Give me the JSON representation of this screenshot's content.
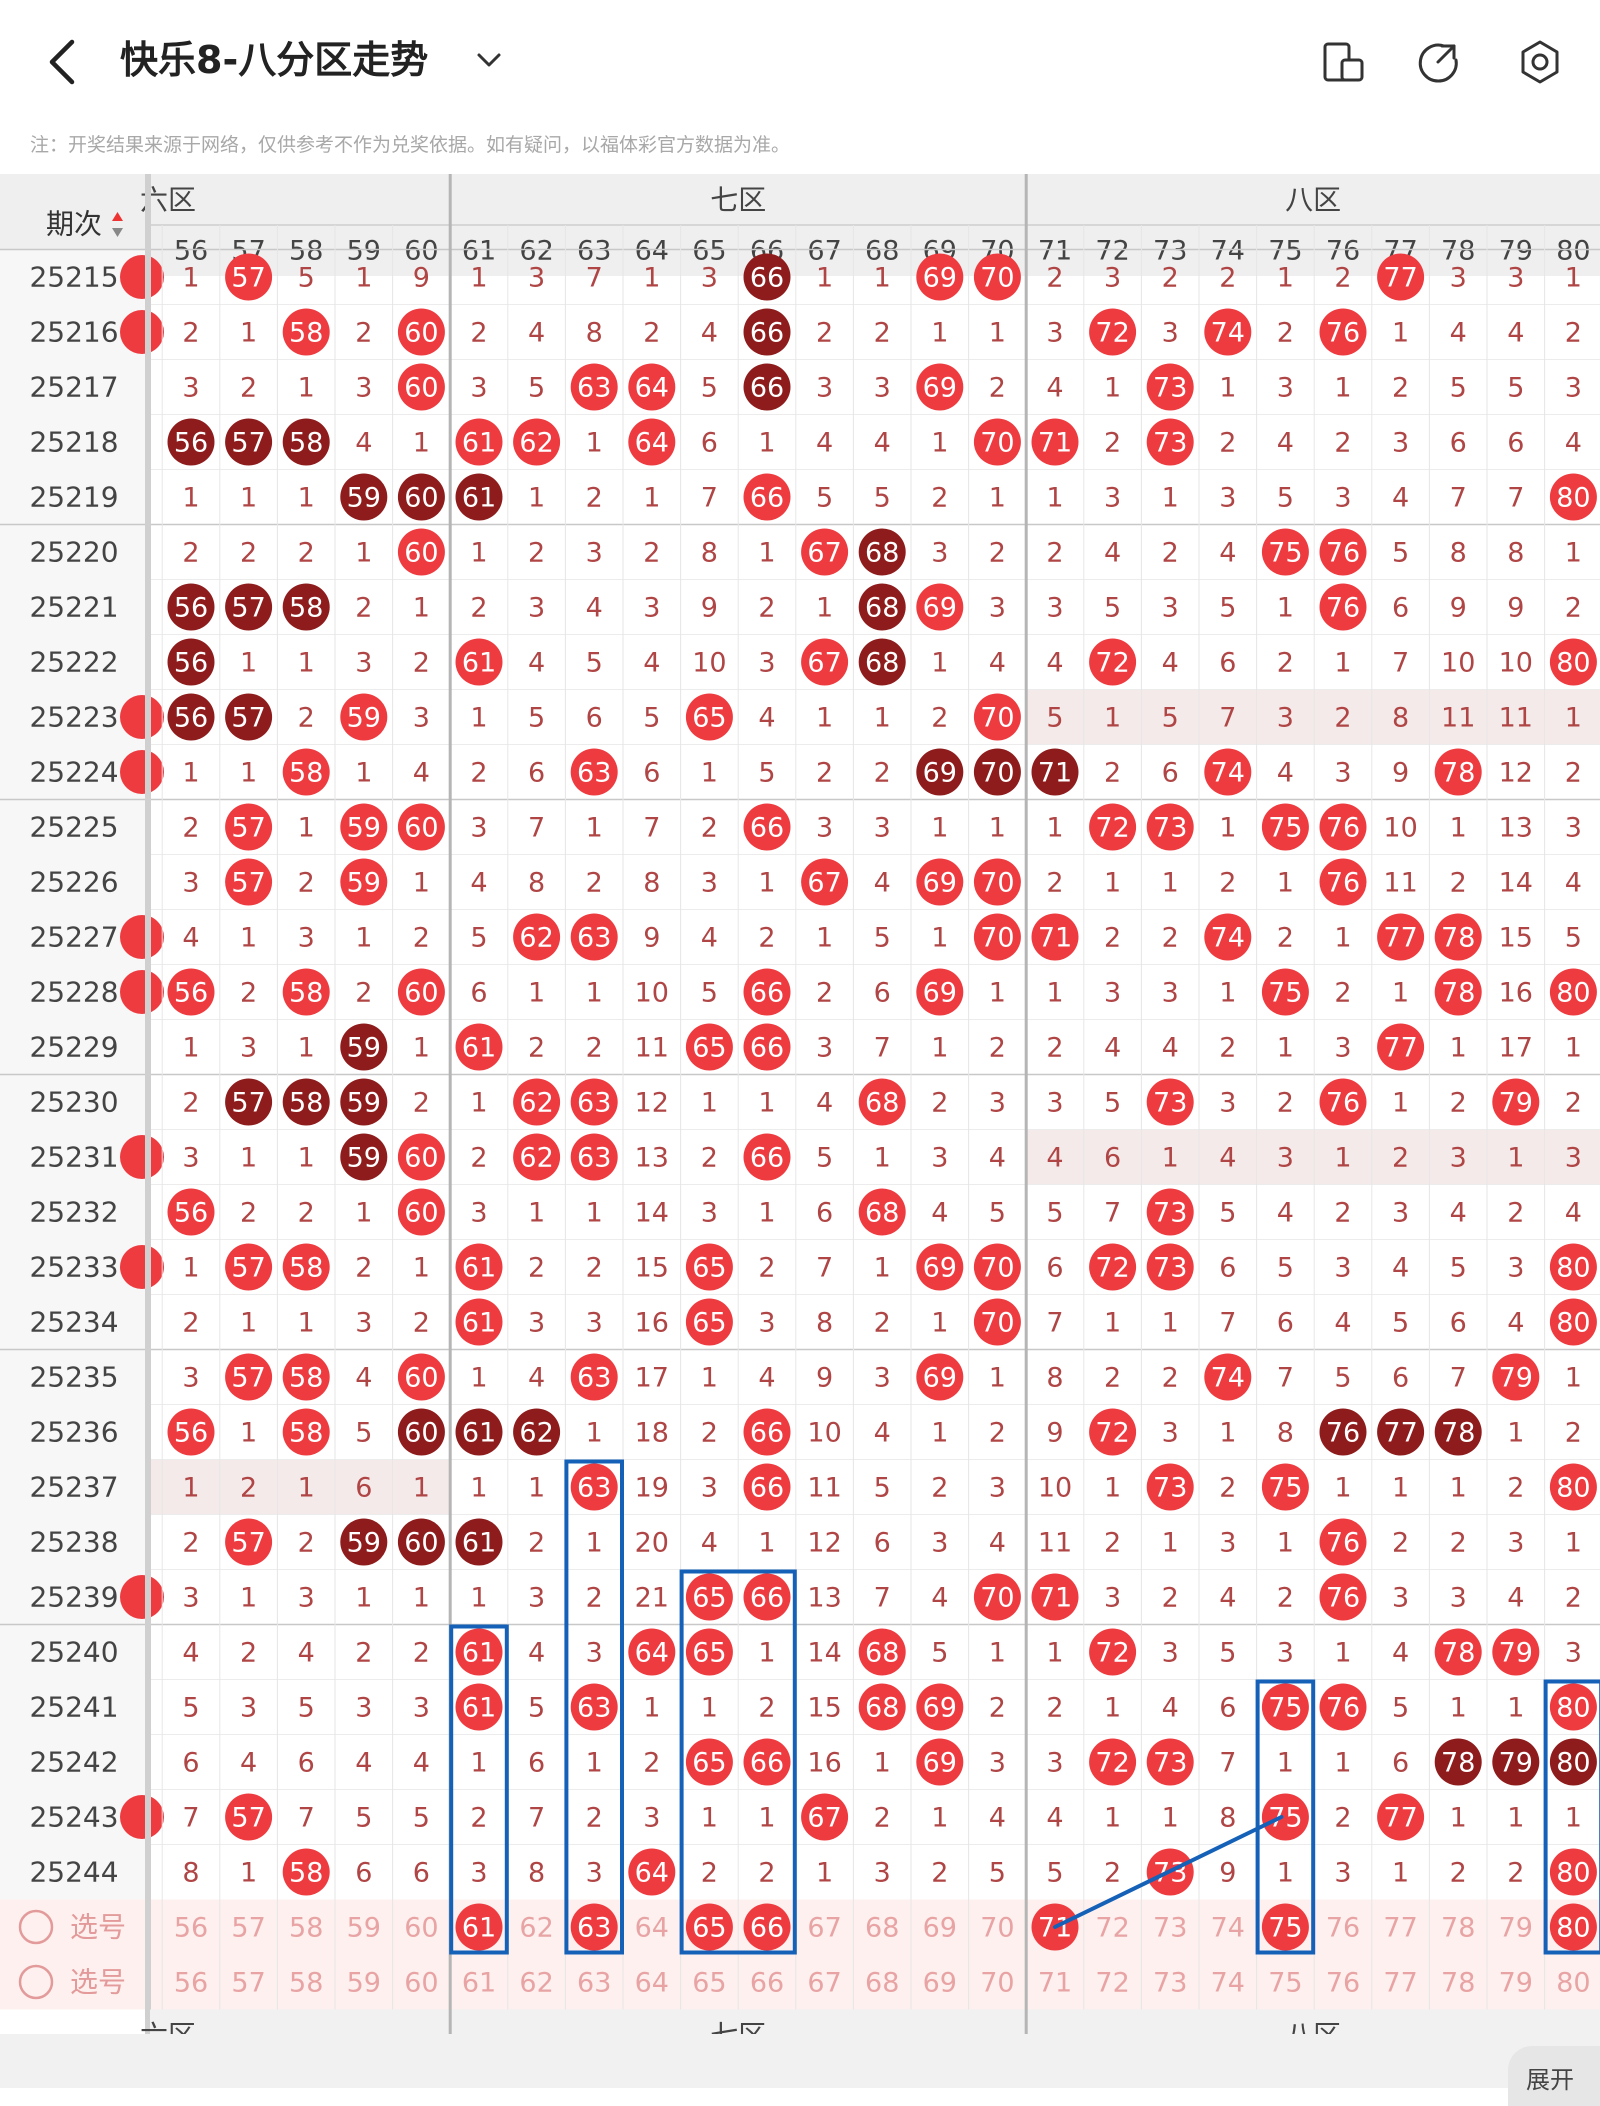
{
  "header": {
    "title": "快乐8-八分区走势",
    "notice": "注：开奖结果来源于网络，仅供参考不作为兑奖依据。如有疑问，以福体彩官方数据为准。"
  },
  "table": {
    "period_label": "期次",
    "zone_labels": [
      "六区",
      "七区",
      "八区"
    ],
    "columns": [
      56,
      57,
      58,
      59,
      60,
      61,
      62,
      63,
      64,
      65,
      66,
      67,
      68,
      69,
      70,
      71,
      72,
      73,
      74,
      75,
      76,
      77,
      78,
      79,
      80
    ],
    "select_label": "选号",
    "select_rows": 2,
    "rows": [
      {
        "period": "25215",
        "values": [
          1,
          57,
          5,
          1,
          9,
          1,
          3,
          7,
          1,
          3,
          66,
          1,
          1,
          69,
          70,
          2,
          3,
          2,
          2,
          1,
          2,
          77,
          3,
          3,
          1
        ],
        "dark": [
          66
        ],
        "left_ball": true,
        "shaded": []
      },
      {
        "period": "25216",
        "values": [
          2,
          1,
          58,
          2,
          60,
          2,
          4,
          8,
          2,
          4,
          66,
          2,
          2,
          1,
          1,
          3,
          72,
          3,
          74,
          2,
          76,
          1,
          4,
          4,
          2
        ],
        "dark": [
          66
        ],
        "left_ball": true,
        "shaded": []
      },
      {
        "period": "25217",
        "values": [
          3,
          2,
          1,
          3,
          60,
          3,
          5,
          63,
          64,
          5,
          66,
          3,
          3,
          69,
          2,
          4,
          1,
          73,
          1,
          3,
          1,
          2,
          5,
          5,
          3
        ],
        "dark": [
          66
        ],
        "left_ball": false,
        "shaded": []
      },
      {
        "period": "25218",
        "values": [
          56,
          57,
          58,
          4,
          1,
          61,
          62,
          1,
          64,
          6,
          1,
          4,
          4,
          1,
          70,
          71,
          2,
          73,
          2,
          4,
          2,
          3,
          6,
          6,
          4
        ],
        "dark": [
          56,
          57,
          58
        ],
        "left_ball": false,
        "shaded": []
      },
      {
        "period": "25219",
        "values": [
          1,
          1,
          1,
          59,
          60,
          61,
          1,
          2,
          1,
          7,
          66,
          5,
          5,
          2,
          1,
          1,
          3,
          1,
          3,
          5,
          3,
          4,
          7,
          7,
          80
        ],
        "dark": [
          59,
          60,
          61
        ],
        "left_ball": false,
        "shaded": []
      },
      {
        "period": "25220",
        "values": [
          2,
          2,
          2,
          1,
          60,
          1,
          2,
          3,
          2,
          8,
          1,
          67,
          68,
          3,
          2,
          2,
          4,
          2,
          4,
          75,
          76,
          5,
          8,
          8,
          1
        ],
        "dark": [
          68
        ],
        "left_ball": false,
        "shaded": []
      },
      {
        "period": "25221",
        "values": [
          56,
          57,
          58,
          2,
          1,
          2,
          3,
          4,
          3,
          9,
          2,
          1,
          68,
          69,
          3,
          3,
          5,
          3,
          5,
          1,
          76,
          6,
          9,
          9,
          2
        ],
        "dark": [
          56,
          57,
          58,
          68
        ],
        "left_ball": false,
        "shaded": []
      },
      {
        "period": "25222",
        "values": [
          56,
          1,
          1,
          3,
          2,
          61,
          4,
          5,
          4,
          10,
          3,
          67,
          68,
          1,
          4,
          4,
          72,
          4,
          6,
          2,
          1,
          7,
          10,
          10,
          80
        ],
        "dark": [
          56,
          68
        ],
        "left_ball": false,
        "shaded": []
      },
      {
        "period": "25223",
        "values": [
          56,
          57,
          2,
          59,
          3,
          1,
          5,
          6,
          5,
          65,
          4,
          1,
          1,
          2,
          70,
          5,
          1,
          5,
          7,
          3,
          2,
          8,
          11,
          11,
          1
        ],
        "dark": [
          56,
          57
        ],
        "left_ball": true,
        "shaded": [
          "八区"
        ]
      },
      {
        "period": "25224",
        "values": [
          1,
          1,
          58,
          1,
          4,
          2,
          6,
          63,
          6,
          1,
          5,
          2,
          2,
          69,
          70,
          71,
          2,
          6,
          74,
          4,
          3,
          9,
          78,
          12,
          2
        ],
        "dark": [
          69,
          70,
          71
        ],
        "left_ball": true,
        "shaded": []
      },
      {
        "period": "25225",
        "values": [
          2,
          57,
          1,
          59,
          60,
          3,
          7,
          1,
          7,
          2,
          66,
          3,
          3,
          1,
          1,
          1,
          72,
          73,
          1,
          75,
          76,
          10,
          1,
          13,
          3
        ],
        "dark": [],
        "left_ball": false,
        "shaded": []
      },
      {
        "period": "25226",
        "values": [
          3,
          57,
          2,
          59,
          1,
          4,
          8,
          2,
          8,
          3,
          1,
          67,
          4,
          69,
          70,
          2,
          1,
          1,
          2,
          1,
          76,
          11,
          2,
          14,
          4
        ],
        "dark": [],
        "left_ball": false,
        "shaded": []
      },
      {
        "period": "25227",
        "values": [
          4,
          1,
          3,
          1,
          2,
          5,
          62,
          63,
          9,
          4,
          2,
          1,
          5,
          1,
          70,
          71,
          2,
          2,
          74,
          2,
          1,
          77,
          78,
          15,
          5
        ],
        "dark": [],
        "left_ball": true,
        "shaded": []
      },
      {
        "period": "25228",
        "values": [
          56,
          2,
          58,
          2,
          60,
          6,
          1,
          1,
          10,
          5,
          66,
          2,
          6,
          69,
          1,
          1,
          3,
          3,
          1,
          75,
          2,
          1,
          78,
          16,
          80
        ],
        "dark": [],
        "left_ball": true,
        "shaded": []
      },
      {
        "period": "25229",
        "values": [
          1,
          3,
          1,
          59,
          1,
          61,
          2,
          2,
          11,
          65,
          66,
          3,
          7,
          1,
          2,
          2,
          4,
          4,
          2,
          1,
          3,
          77,
          1,
          17,
          1
        ],
        "dark": [
          59
        ],
        "left_ball": false,
        "shaded": []
      },
      {
        "period": "25230",
        "values": [
          2,
          57,
          58,
          59,
          2,
          1,
          62,
          63,
          12,
          1,
          1,
          4,
          68,
          2,
          3,
          3,
          5,
          73,
          3,
          2,
          76,
          1,
          2,
          79,
          2
        ],
        "dark": [
          57,
          58,
          59
        ],
        "left_ball": false,
        "shaded": []
      },
      {
        "period": "25231",
        "values": [
          3,
          1,
          1,
          59,
          60,
          2,
          62,
          63,
          13,
          2,
          66,
          5,
          1,
          3,
          4,
          4,
          6,
          1,
          4,
          3,
          1,
          2,
          3,
          1,
          3
        ],
        "dark": [
          59
        ],
        "left_ball": true,
        "shaded": [
          "八区"
        ]
      },
      {
        "period": "25232",
        "values": [
          56,
          2,
          2,
          1,
          60,
          3,
          1,
          1,
          14,
          3,
          1,
          6,
          68,
          4,
          5,
          5,
          7,
          73,
          5,
          4,
          2,
          3,
          4,
          2,
          4
        ],
        "dark": [],
        "left_ball": false,
        "shaded": []
      },
      {
        "period": "25233",
        "values": [
          1,
          57,
          58,
          2,
          1,
          61,
          2,
          2,
          15,
          65,
          2,
          7,
          1,
          69,
          70,
          6,
          72,
          73,
          6,
          5,
          3,
          4,
          5,
          3,
          80
        ],
        "dark": [],
        "left_ball": true,
        "shaded": []
      },
      {
        "period": "25234",
        "values": [
          2,
          1,
          1,
          3,
          2,
          61,
          3,
          3,
          16,
          65,
          3,
          8,
          2,
          1,
          70,
          7,
          1,
          1,
          7,
          6,
          4,
          5,
          6,
          4,
          80
        ],
        "dark": [],
        "left_ball": false,
        "shaded": []
      },
      {
        "period": "25235",
        "values": [
          3,
          57,
          58,
          4,
          60,
          1,
          4,
          63,
          17,
          1,
          4,
          9,
          3,
          69,
          1,
          8,
          2,
          2,
          74,
          7,
          5,
          6,
          7,
          79,
          1
        ],
        "dark": [],
        "left_ball": false,
        "shaded": []
      },
      {
        "period": "25236",
        "values": [
          56,
          1,
          58,
          5,
          60,
          61,
          62,
          1,
          18,
          2,
          66,
          10,
          4,
          1,
          2,
          9,
          72,
          3,
          1,
          8,
          76,
          77,
          78,
          1,
          2
        ],
        "dark": [
          60,
          61,
          62,
          76,
          77,
          78
        ],
        "left_ball": false,
        "shaded": []
      },
      {
        "period": "25237",
        "values": [
          1,
          2,
          1,
          6,
          1,
          1,
          1,
          63,
          19,
          3,
          66,
          11,
          5,
          2,
          3,
          10,
          1,
          73,
          2,
          75,
          1,
          1,
          1,
          2,
          80
        ],
        "dark": [],
        "left_ball": false,
        "shaded": [
          "六区"
        ]
      },
      {
        "period": "25238",
        "values": [
          2,
          57,
          2,
          59,
          60,
          61,
          2,
          1,
          20,
          4,
          1,
          12,
          6,
          3,
          4,
          11,
          2,
          1,
          3,
          1,
          76,
          2,
          2,
          3,
          1
        ],
        "dark": [
          59,
          60,
          61
        ],
        "left_ball": false,
        "shaded": []
      },
      {
        "period": "25239",
        "values": [
          3,
          1,
          3,
          1,
          1,
          1,
          3,
          2,
          21,
          65,
          66,
          13,
          7,
          4,
          70,
          71,
          3,
          2,
          4,
          2,
          76,
          3,
          3,
          4,
          2
        ],
        "dark": [],
        "left_ball": true,
        "shaded": []
      },
      {
        "period": "25240",
        "values": [
          4,
          2,
          4,
          2,
          2,
          61,
          4,
          3,
          64,
          65,
          1,
          14,
          68,
          5,
          1,
          1,
          72,
          3,
          5,
          3,
          1,
          4,
          78,
          79,
          3
        ],
        "dark": [],
        "left_ball": false,
        "shaded": []
      },
      {
        "period": "25241",
        "values": [
          5,
          3,
          5,
          3,
          3,
          61,
          5,
          63,
          1,
          1,
          2,
          15,
          68,
          69,
          2,
          2,
          1,
          4,
          6,
          75,
          76,
          5,
          1,
          1,
          80
        ],
        "dark": [],
        "left_ball": false,
        "shaded": []
      },
      {
        "period": "25242",
        "values": [
          6,
          4,
          6,
          4,
          4,
          1,
          6,
          1,
          2,
          65,
          66,
          16,
          1,
          69,
          3,
          3,
          72,
          73,
          7,
          1,
          1,
          6,
          78,
          79,
          80
        ],
        "dark": [
          78,
          79,
          80
        ],
        "left_ball": false,
        "shaded": []
      },
      {
        "period": "25243",
        "values": [
          7,
          57,
          7,
          5,
          5,
          2,
          7,
          2,
          3,
          1,
          1,
          67,
          2,
          1,
          4,
          4,
          1,
          1,
          8,
          75,
          2,
          77,
          1,
          1,
          1
        ],
        "dark": [],
        "left_ball": true,
        "shaded": []
      },
      {
        "period": "25244",
        "values": [
          8,
          1,
          58,
          6,
          6,
          3,
          8,
          3,
          64,
          2,
          2,
          1,
          3,
          2,
          5,
          5,
          2,
          73,
          9,
          1,
          3,
          1,
          2,
          2,
          80
        ],
        "dark": [],
        "left_ball": false,
        "shaded": []
      }
    ],
    "selected_numbers": [
      61,
      63,
      65,
      66,
      71,
      75,
      80
    ],
    "boxes": [
      {
        "column": 61,
        "from": "25240",
        "to": "selection"
      },
      {
        "column": 63,
        "from": "25237",
        "to": "selection"
      },
      {
        "column": 65,
        "to_column": 66,
        "from": "25239",
        "to": "selection"
      },
      {
        "column": 75,
        "from": "25241",
        "to": "selection"
      },
      {
        "column": 80,
        "from": "25241",
        "to": "selection"
      }
    ],
    "expand_label": "展开"
  },
  "colors": {
    "ball_red": "#ee3b40",
    "ball_dark": "#8e1c1c",
    "number_text": "#b04545",
    "select_text": "#e8a4a4",
    "annotation_blue": "#1561b8",
    "row_shade": "#f5eaea",
    "select_row_bg": "#fdf0ee"
  }
}
